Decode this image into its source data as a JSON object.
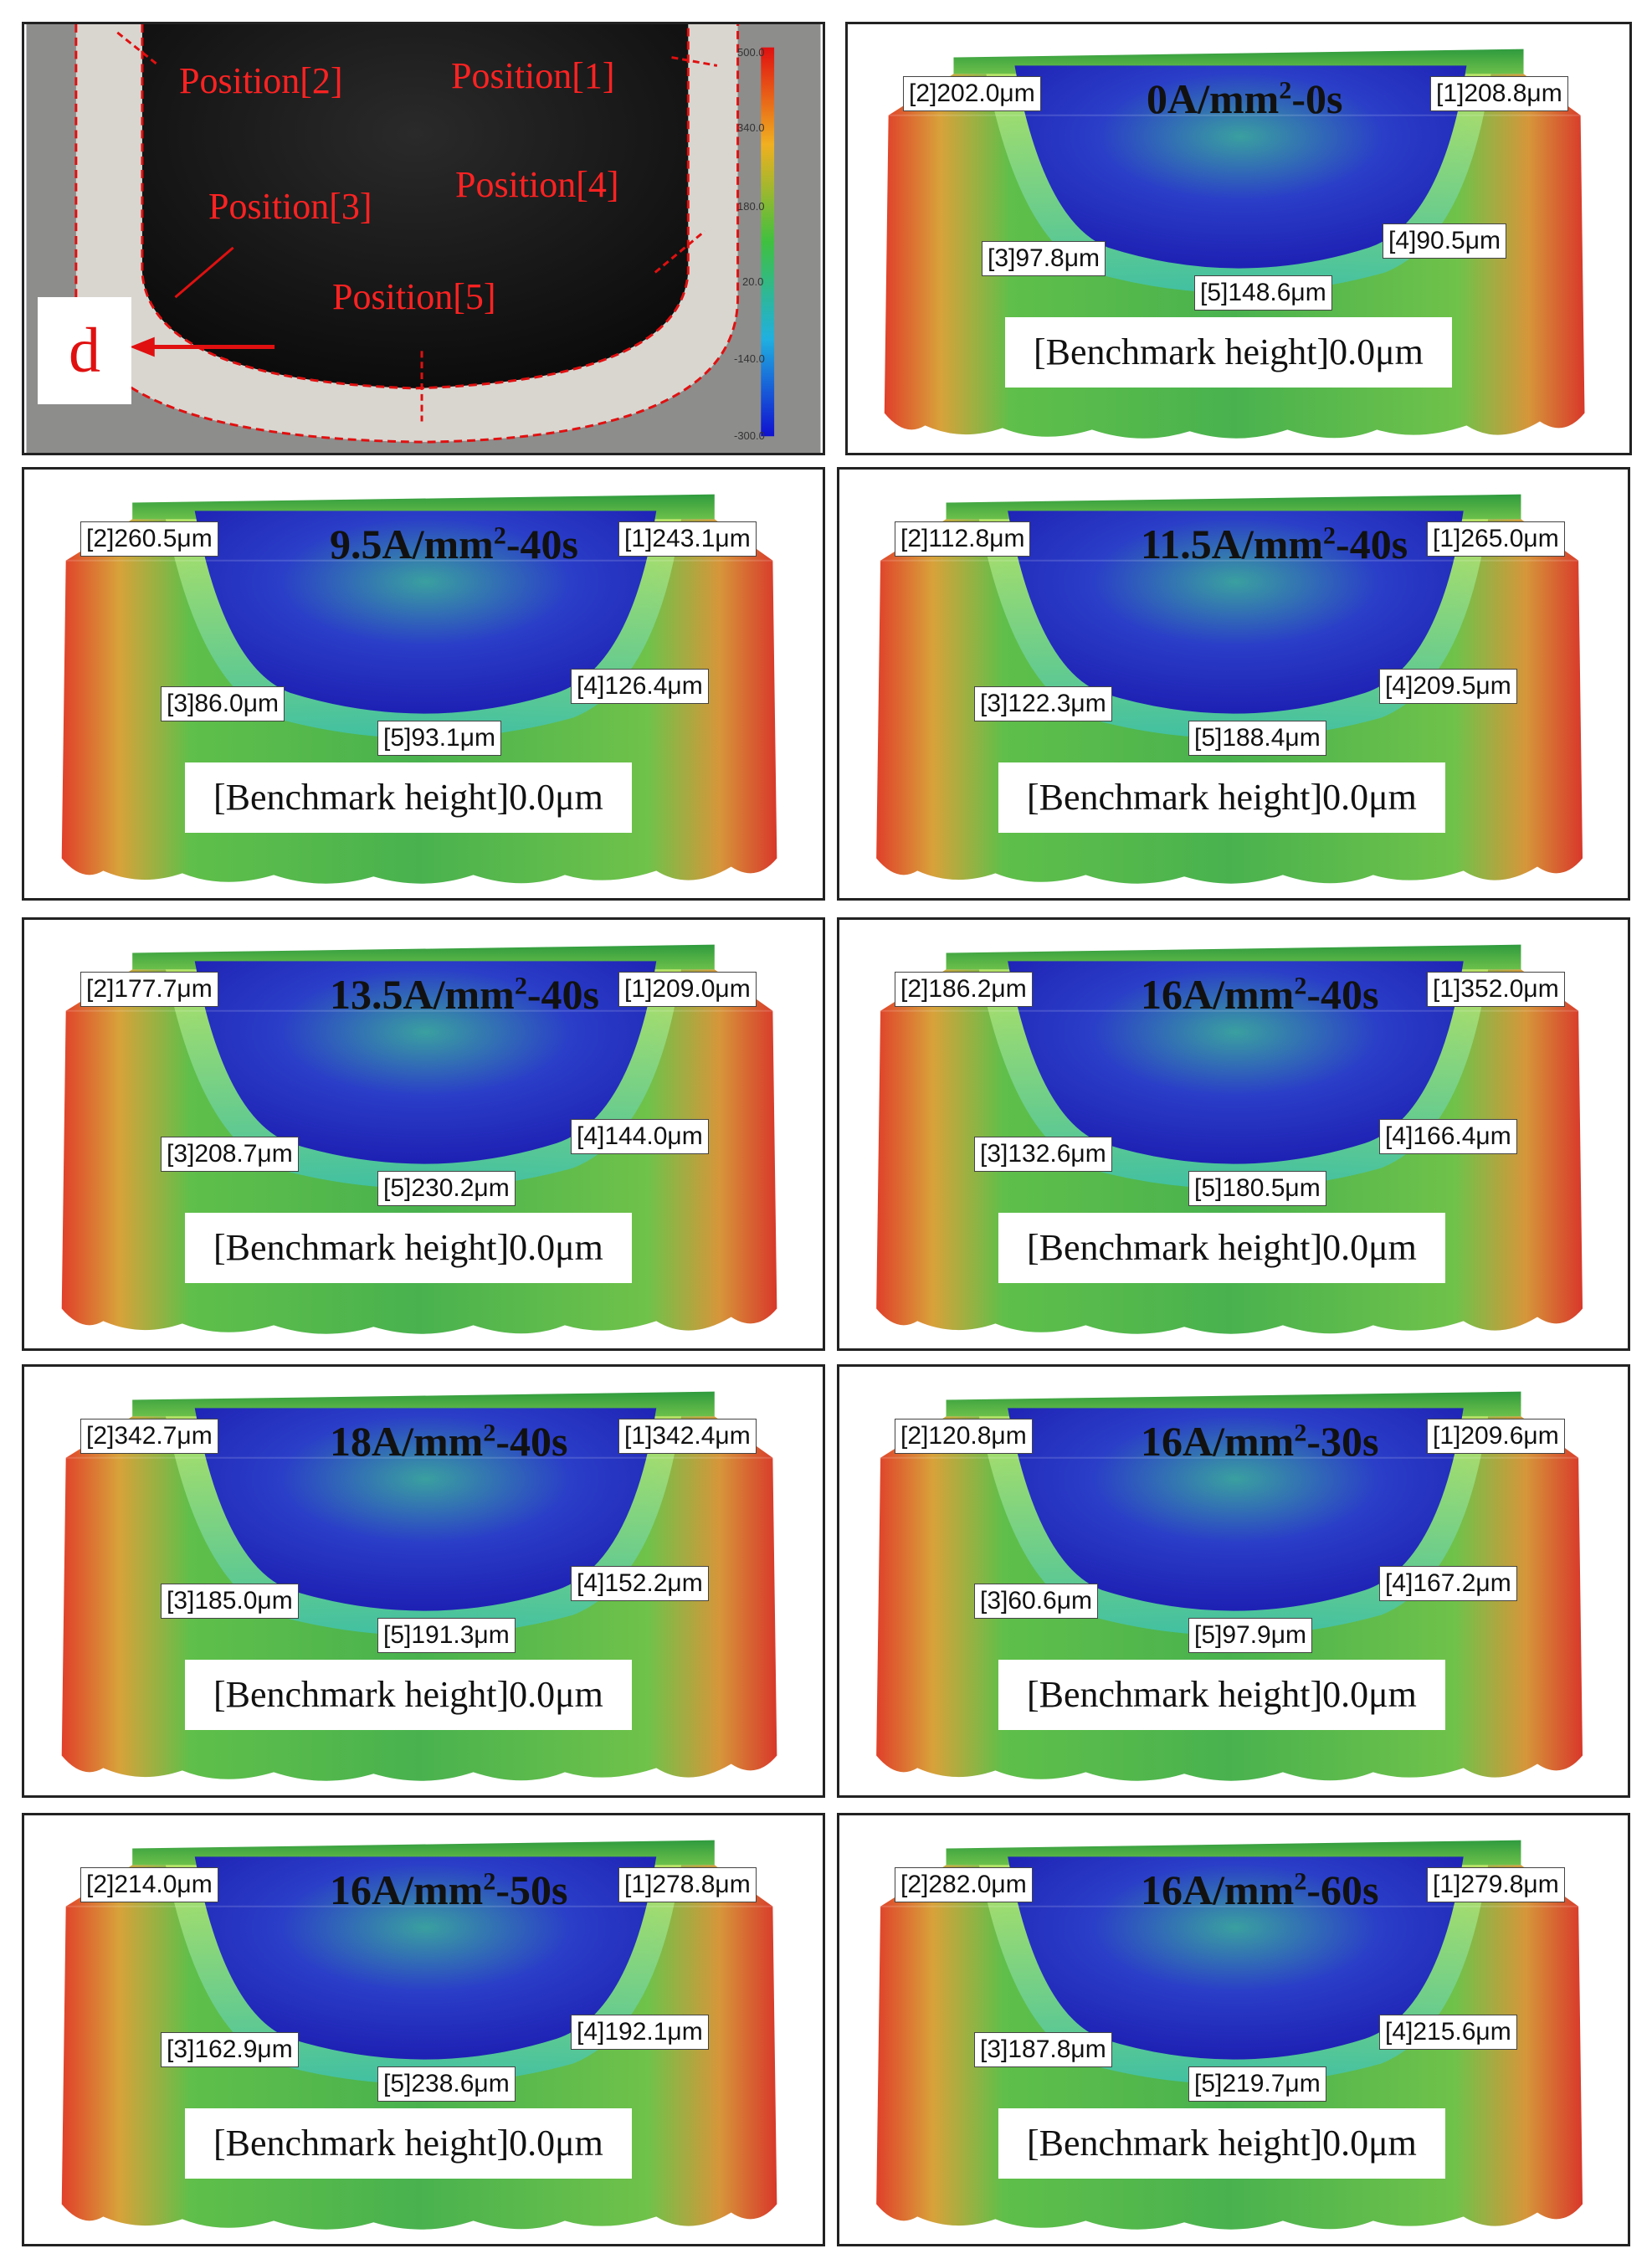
{
  "reference_panel": {
    "positions": [
      "Position[2]",
      "Position[1]",
      "Position[3]",
      "Position[4]",
      "Position[5]"
    ],
    "d_label": "d",
    "colorbar_ticks": [
      "500.0",
      "340.0",
      "180.0",
      "20.0",
      "-140.0",
      "-300.0"
    ]
  },
  "panels": [
    {
      "title_pre": "0A/mm",
      "title_sup": "2",
      "title_post": "-0s",
      "l1": "[1]208.8μm",
      "l2": "[2]202.0μm",
      "l3": "[3]97.8μm",
      "l4": "[4]90.5μm",
      "l5": "[5]148.6μm",
      "bench": "[Benchmark height]0.0μm"
    },
    {
      "title_pre": "9.5A/mm",
      "title_sup": "2",
      "title_post": "-40s",
      "l1": "[1]243.1μm",
      "l2": "[2]260.5μm",
      "l3": "[3]86.0μm",
      "l4": "[4]126.4μm",
      "l5": "[5]93.1μm",
      "bench": "[Benchmark height]0.0μm"
    },
    {
      "title_pre": "11.5A/mm",
      "title_sup": "2",
      "title_post": "-40s",
      "l1": "[1]265.0μm",
      "l2": "[2]112.8μm",
      "l3": "[3]122.3μm",
      "l4": "[4]209.5μm",
      "l5": "[5]188.4μm",
      "bench": "[Benchmark height]0.0μm"
    },
    {
      "title_pre": "13.5A/mm",
      "title_sup": "2",
      "title_post": "-40s",
      "l1": "[1]209.0μm",
      "l2": "[2]177.7μm",
      "l3": "[3]208.7μm",
      "l4": "[4]144.0μm",
      "l5": "[5]230.2μm",
      "bench": "[Benchmark height]0.0μm"
    },
    {
      "title_pre": "16A/mm",
      "title_sup": "2",
      "title_post": "-40s",
      "l1": "[1]352.0μm",
      "l2": "[2]186.2μm",
      "l3": "[3]132.6μm",
      "l4": "[4]166.4μm",
      "l5": "[5]180.5μm",
      "bench": "[Benchmark height]0.0μm"
    },
    {
      "title_pre": "18A/mm",
      "title_sup": "2",
      "title_post": "-40s",
      "l1": "[1]342.4μm",
      "l2": "[2]342.7μm",
      "l3": "[3]185.0μm",
      "l4": "[4]152.2μm",
      "l5": "[5]191.3μm",
      "bench": "[Benchmark height]0.0μm"
    },
    {
      "title_pre": "16A/mm",
      "title_sup": "2",
      "title_post": "-30s",
      "l1": "[1]209.6μm",
      "l2": "[2]120.8μm",
      "l3": "[3]60.6μm",
      "l4": "[4]167.2μm",
      "l5": "[5]97.9μm",
      "bench": "[Benchmark height]0.0μm"
    },
    {
      "title_pre": "16A/mm",
      "title_sup": "2",
      "title_post": "-50s",
      "l1": "[1]278.8μm",
      "l2": "[2]214.0μm",
      "l3": "[3]162.9μm",
      "l4": "[4]192.1μm",
      "l5": "[5]238.6μm",
      "bench": "[Benchmark height]0.0μm"
    },
    {
      "title_pre": "16A/mm",
      "title_sup": "2",
      "title_post": "-60s",
      "l1": "[1]279.8μm",
      "l2": "[2]282.0μm",
      "l3": "[3]187.8μm",
      "l4": "[4]215.6μm",
      "l5": "[5]219.7μm",
      "bench": "[Benchmark height]0.0μm"
    }
  ]
}
